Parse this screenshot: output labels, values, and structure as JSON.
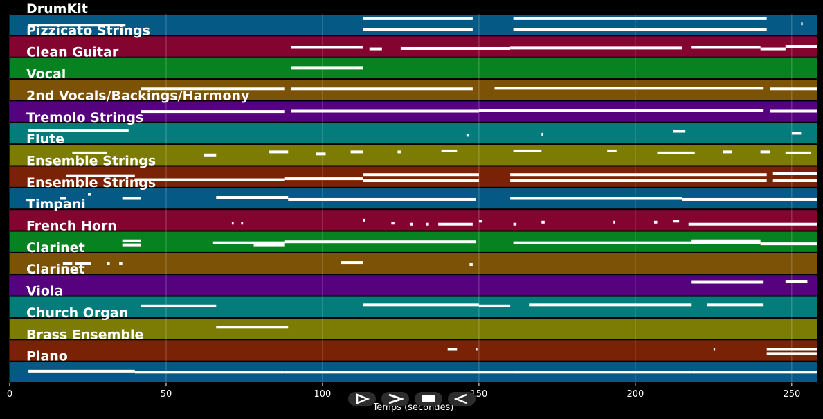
{
  "chart_data": {
    "type": "piano-roll",
    "xlabel": "Temps (secondes)",
    "xlim": [
      0,
      258
    ],
    "xticks": [
      0,
      50,
      100,
      150,
      200,
      250
    ],
    "grid": true,
    "background": "#000000",
    "tracks": [
      {
        "name": "DrumKit",
        "color": "#045a84",
        "notes": [
          [
            6,
            37,
            0.52
          ],
          [
            113,
            148,
            0.2
          ],
          [
            113,
            148,
            0.75
          ],
          [
            161,
            242,
            0.2
          ],
          [
            161,
            242,
            0.75
          ],
          [
            253,
            253.5,
            0.45
          ]
        ]
      },
      {
        "name": "Pizzicato Strings",
        "color": "#840430",
        "notes": [
          [
            90,
            113,
            0.55
          ],
          [
            115,
            119,
            0.62
          ],
          [
            125,
            160,
            0.6
          ],
          [
            160,
            215,
            0.58
          ],
          [
            218,
            240,
            0.55
          ],
          [
            240,
            248,
            0.62
          ],
          [
            248,
            258,
            0.5
          ]
        ]
      },
      {
        "name": "Clean Guitar",
        "color": "#068220",
        "notes": [
          [
            90,
            113,
            0.5
          ]
        ]
      },
      {
        "name": "Vocal",
        "color": "#7c5206",
        "notes": [
          [
            42,
            88,
            0.45
          ],
          [
            90,
            148,
            0.45
          ],
          [
            155,
            241,
            0.42
          ],
          [
            243,
            258,
            0.45
          ]
        ]
      },
      {
        "name": "2nd Vocals/Backings/Harmony",
        "color": "#56027e",
        "notes": [
          [
            42,
            88,
            0.5
          ],
          [
            90,
            150,
            0.48
          ],
          [
            150,
            241,
            0.45
          ],
          [
            243,
            258,
            0.48
          ]
        ]
      },
      {
        "name": "Tremolo Strings",
        "color": "#047c7c",
        "notes": [
          [
            6,
            38,
            0.35
          ],
          [
            146,
            146.8,
            0.6
          ],
          [
            170,
            170.5,
            0.55
          ],
          [
            212,
            216,
            0.4
          ],
          [
            250,
            253,
            0.5
          ]
        ]
      },
      {
        "name": "Flute",
        "color": "#7c7c04",
        "notes": [
          [
            20,
            31,
            0.4
          ],
          [
            62,
            66,
            0.5
          ],
          [
            83,
            89,
            0.35
          ],
          [
            98,
            101,
            0.45
          ],
          [
            109,
            113,
            0.35
          ],
          [
            124,
            125,
            0.35
          ],
          [
            138,
            143,
            0.3
          ],
          [
            161,
            170,
            0.3
          ],
          [
            191,
            194,
            0.3
          ],
          [
            207,
            219,
            0.4
          ],
          [
            228,
            231,
            0.35
          ],
          [
            240,
            243,
            0.35
          ],
          [
            248,
            256,
            0.4
          ]
        ]
      },
      {
        "name": "Ensemble Strings",
        "color": "#7a2206",
        "notes": [
          [
            18,
            40,
            0.45
          ],
          [
            40,
            88,
            0.65
          ],
          [
            88,
            113,
            0.6
          ],
          [
            113,
            150,
            0.4
          ],
          [
            113,
            150,
            0.7
          ],
          [
            160,
            242,
            0.4
          ],
          [
            160,
            242,
            0.7
          ],
          [
            244,
            258,
            0.35
          ],
          [
            244,
            258,
            0.7
          ]
        ]
      },
      {
        "name": "Ensemble Strings",
        "color": "#045a84",
        "notes": [
          [
            16,
            18,
            0.5
          ],
          [
            25,
            26,
            0.3
          ],
          [
            36,
            42,
            0.5
          ],
          [
            66,
            89,
            0.45
          ],
          [
            89,
            113,
            0.55
          ],
          [
            113,
            149,
            0.55
          ],
          [
            160,
            215,
            0.5
          ],
          [
            215,
            258,
            0.55
          ]
        ]
      },
      {
        "name": "Timpani",
        "color": "#840430",
        "notes": [
          [
            71,
            71.6,
            0.65
          ],
          [
            74,
            74.6,
            0.65
          ],
          [
            113,
            113.5,
            0.5
          ],
          [
            122,
            123,
            0.65
          ],
          [
            128,
            129,
            0.7
          ],
          [
            133,
            134,
            0.7
          ],
          [
            137,
            148,
            0.7
          ],
          [
            150,
            151,
            0.55
          ],
          [
            161,
            162,
            0.7
          ],
          [
            170,
            171,
            0.6
          ],
          [
            193,
            193.6,
            0.6
          ],
          [
            206,
            207,
            0.6
          ],
          [
            212,
            214,
            0.55
          ],
          [
            217,
            258,
            0.7
          ]
        ]
      },
      {
        "name": "French Horn",
        "color": "#068220",
        "notes": [
          [
            36,
            42,
            0.45
          ],
          [
            36,
            42,
            0.65
          ],
          [
            65,
            88,
            0.55
          ],
          [
            78,
            88,
            0.65
          ],
          [
            88,
            149,
            0.5
          ],
          [
            161,
            240,
            0.55
          ],
          [
            218,
            240,
            0.45
          ],
          [
            240,
            258,
            0.6
          ]
        ]
      },
      {
        "name": "Clarinet",
        "color": "#7c5206",
        "notes": [
          [
            17,
            20,
            0.5
          ],
          [
            21,
            26,
            0.5
          ],
          [
            31,
            32,
            0.5
          ],
          [
            35,
            36,
            0.5
          ],
          [
            106,
            113,
            0.45
          ],
          [
            147,
            148,
            0.55
          ]
        ]
      },
      {
        "name": "Clarinet",
        "color": "#56027e",
        "notes": [
          [
            218,
            241,
            0.35
          ],
          [
            248,
            255,
            0.3
          ]
        ]
      },
      {
        "name": "Viola",
        "color": "#047c7c",
        "notes": [
          [
            42,
            66,
            0.45
          ],
          [
            113,
            150,
            0.4
          ],
          [
            150,
            160,
            0.45
          ],
          [
            166,
            218,
            0.4
          ],
          [
            223,
            241,
            0.4
          ]
        ]
      },
      {
        "name": "Church Organ",
        "color": "#7c7c04",
        "notes": [
          [
            66,
            89,
            0.42
          ]
        ]
      },
      {
        "name": "Brass Ensemble",
        "color": "#7a2206",
        "notes": [
          [
            140,
            143,
            0.45
          ],
          [
            149,
            149.5,
            0.45
          ],
          [
            225,
            225.5,
            0.45
          ],
          [
            242,
            258,
            0.45
          ],
          [
            242,
            258,
            0.65
          ]
        ]
      },
      {
        "name": "Piano",
        "color": "#045a84",
        "notes": [
          [
            6,
            40,
            0.45
          ],
          [
            40,
            88,
            0.5
          ],
          [
            88,
            113,
            0.5
          ],
          [
            113,
            161,
            0.5
          ],
          [
            161,
            218,
            0.5
          ],
          [
            218,
            258,
            0.5
          ]
        ]
      }
    ]
  },
  "controls": [
    {
      "name": "play-forward-outline-icon",
      "glyph": "outline-play"
    },
    {
      "name": "next-chevron-icon",
      "glyph": "chevron"
    },
    {
      "name": "stop-square-icon",
      "glyph": "stop"
    },
    {
      "name": "rewind-outline-icon",
      "glyph": "outline-back"
    }
  ]
}
